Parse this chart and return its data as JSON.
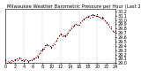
{
  "title": "Milwaukee Weather Barometric Pressure per Hour (Last 24 Hours)",
  "xlim": [
    0,
    24
  ],
  "ylim": [
    29.0,
    30.25
  ],
  "ytick_vals": [
    29.0,
    29.1,
    29.2,
    29.3,
    29.4,
    29.5,
    29.6,
    29.7,
    29.8,
    29.9,
    30.0,
    30.1,
    30.2
  ],
  "ytick_labels": [
    "29.0",
    "29.1",
    "29.2",
    "29.3",
    "29.4",
    "29.5",
    "29.6",
    "29.7",
    "29.8",
    "29.9",
    "30.0",
    "30.1",
    "30.2"
  ],
  "xtick_vals": [
    0,
    2,
    4,
    6,
    8,
    10,
    12,
    14,
    16,
    18,
    20,
    22,
    24
  ],
  "bg_color": "#ffffff",
  "hours": [
    0,
    1,
    2,
    3,
    4,
    5,
    6,
    7,
    8,
    9,
    10,
    11,
    12,
    13,
    14,
    15,
    16,
    17,
    18,
    19,
    20,
    21,
    22,
    23,
    24
  ],
  "pressure_black": [
    29.05,
    29.02,
    29.08,
    29.12,
    29.06,
    29.04,
    29.1,
    29.18,
    29.3,
    29.42,
    29.38,
    29.52,
    29.68,
    29.62,
    29.78,
    29.9,
    29.88,
    30.02,
    30.08,
    30.12,
    30.1,
    30.05,
    29.95,
    29.8,
    29.7
  ],
  "pressure_red": [
    29.05,
    29.03,
    29.07,
    29.11,
    29.07,
    29.05,
    29.09,
    29.17,
    29.3,
    29.41,
    29.38,
    29.51,
    29.67,
    29.62,
    29.77,
    29.89,
    29.88,
    30.01,
    30.08,
    30.11,
    30.09,
    30.04,
    29.95,
    29.8,
    29.7
  ],
  "grid_color": "#999999",
  "grid_x_positions": [
    0,
    4,
    8,
    12,
    16,
    20,
    24
  ],
  "black_color": "#000000",
  "red_color": "#ff0000",
  "tick_fontsize": 3.5,
  "title_fontsize": 3.8,
  "marker_size_black": 1.0,
  "marker_size_red": 1.0
}
